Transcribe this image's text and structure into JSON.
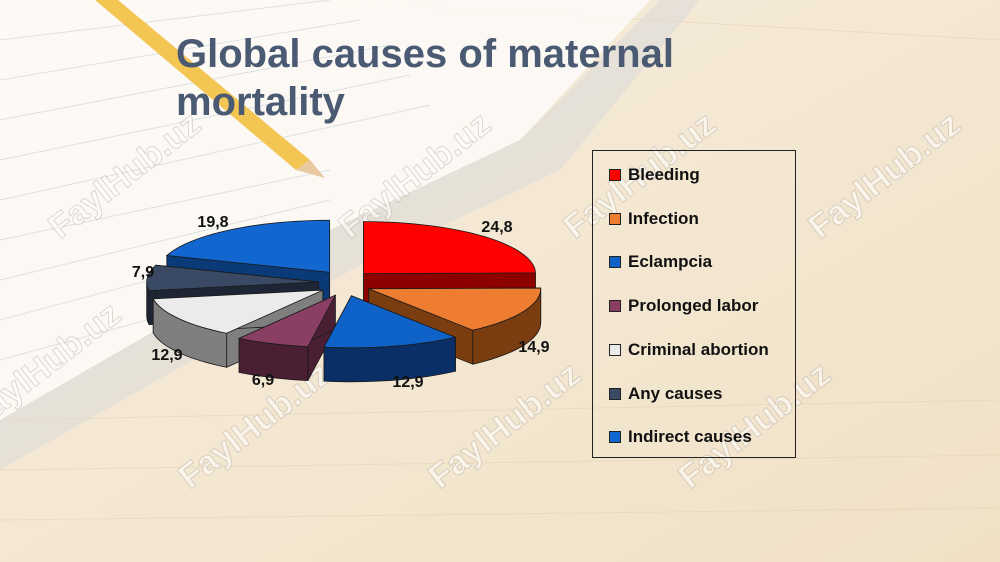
{
  "slide": {
    "title": "Global causes of maternal mortality",
    "watermark": "FaylHub.uz"
  },
  "chart_data": {
    "type": "pie",
    "style": "3d-exploded",
    "title": "Global causes of maternal mortality",
    "decimal_separator": ",",
    "legend_position": "right",
    "categories": [
      "Bleeding",
      "Infection",
      "Eclampcia",
      "Prolonged labor",
      "Criminal abortion",
      "Any causes",
      "Indirect causes"
    ],
    "values": [
      24.8,
      14.9,
      12.9,
      6.9,
      12.9,
      7.9,
      19.8
    ],
    "labels": [
      "24,8",
      "14,9",
      "12,9",
      "6,9",
      "12,9",
      "7,9",
      "19,8"
    ],
    "colors": [
      "#ff0000",
      "#ee7d31",
      "#0e62c8",
      "#8a3e63",
      "#ebebeb",
      "#3a4a64",
      "#1266d0"
    ],
    "side_colors": [
      "#8c0000",
      "#7a3d10",
      "#0a2f66",
      "#4a1f34",
      "#7f7f7f",
      "#1e2636",
      "#0b3a78"
    ]
  }
}
